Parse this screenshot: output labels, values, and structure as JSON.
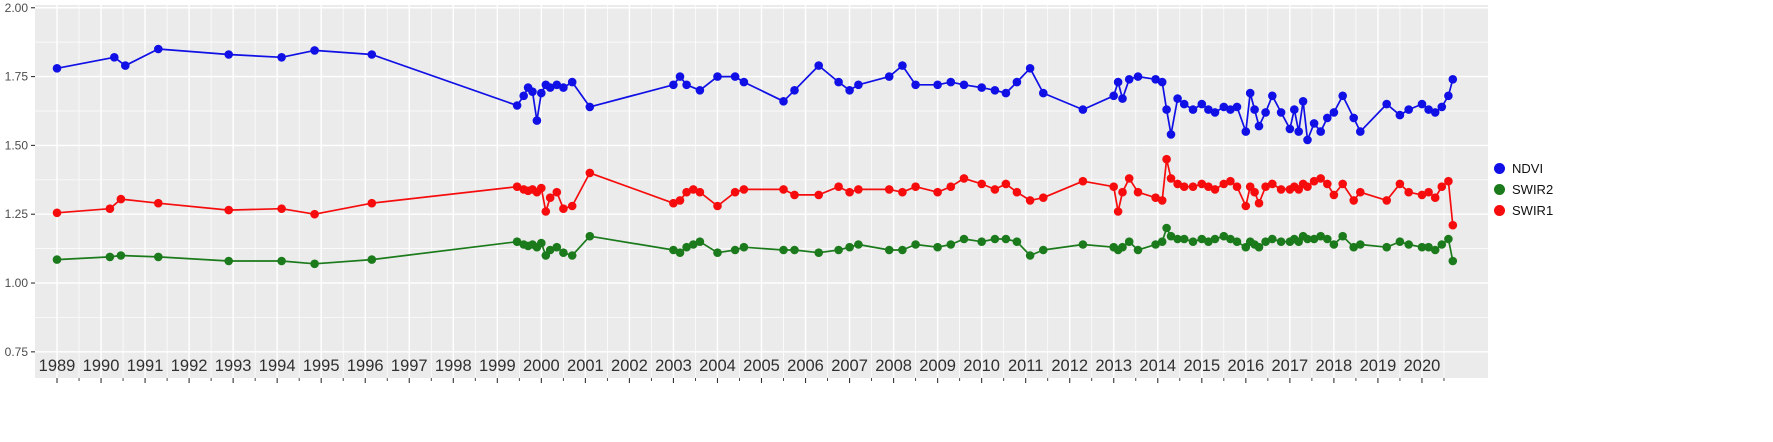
{
  "chart_data": {
    "type": "line",
    "title": "",
    "xlabel": "",
    "ylabel": "",
    "xlim": [
      1988.5,
      2021.5
    ],
    "ylim": [
      0.655,
      2.01
    ],
    "grid": true,
    "panel_bg": "#EBEBEB",
    "grid_color": "#FFFFFF",
    "tick_color": "#333333",
    "x_axis_text_color": "#303030",
    "y_axis_text_color": "#4d4d4d",
    "legend_position": "right",
    "x_ticks": [
      1989,
      1990,
      1991,
      1992,
      1993,
      1994,
      1995,
      1996,
      1997,
      1998,
      1999,
      2000,
      2001,
      2002,
      2003,
      2004,
      2005,
      2006,
      2007,
      2008,
      2009,
      2010,
      2011,
      2012,
      2013,
      2014,
      2015,
      2016,
      2017,
      2018,
      2019,
      2020
    ],
    "y_ticks": [
      {
        "v": 0.75,
        "label": "0.75"
      },
      {
        "v": 1.0,
        "label": "1.00"
      },
      {
        "v": 1.25,
        "label": "1.25"
      },
      {
        "v": 1.5,
        "label": "1.50"
      },
      {
        "v": 1.75,
        "label": "1.75"
      },
      {
        "v": 2.0,
        "label": "2.00"
      }
    ],
    "y_minor": [
      0.875,
      1.125,
      1.375,
      1.625,
      1.875
    ],
    "legend": {
      "entries": [
        {
          "label": "NDVI",
          "color": "#0F0FE6"
        },
        {
          "label": "SWIR2",
          "color": "#1B7A1B"
        },
        {
          "label": "SWIR1",
          "color": "#F60C0C"
        }
      ]
    },
    "series": [
      {
        "name": "NDVI",
        "color": "#0F0FE6",
        "points": [
          [
            1989.0,
            1.78
          ],
          [
            1990.3,
            1.82
          ],
          [
            1990.55,
            1.79
          ],
          [
            1991.3,
            1.85
          ],
          [
            1992.9,
            1.83
          ],
          [
            1994.1,
            1.82
          ],
          [
            1994.85,
            1.845
          ],
          [
            1996.15,
            1.83
          ],
          [
            1999.45,
            1.645
          ],
          [
            1999.6,
            1.68
          ],
          [
            1999.7,
            1.71
          ],
          [
            1999.8,
            1.695
          ],
          [
            1999.9,
            1.59
          ],
          [
            2000.0,
            1.69
          ],
          [
            2000.1,
            1.72
          ],
          [
            2000.2,
            1.71
          ],
          [
            2000.35,
            1.72
          ],
          [
            2000.5,
            1.71
          ],
          [
            2000.7,
            1.73
          ],
          [
            2001.1,
            1.64
          ],
          [
            2003.0,
            1.72
          ],
          [
            2003.15,
            1.75
          ],
          [
            2003.3,
            1.72
          ],
          [
            2003.6,
            1.7
          ],
          [
            2004.0,
            1.75
          ],
          [
            2004.4,
            1.75
          ],
          [
            2004.6,
            1.73
          ],
          [
            2005.5,
            1.66
          ],
          [
            2005.75,
            1.7
          ],
          [
            2006.3,
            1.79
          ],
          [
            2006.75,
            1.73
          ],
          [
            2007.0,
            1.7
          ],
          [
            2007.2,
            1.72
          ],
          [
            2007.9,
            1.75
          ],
          [
            2008.2,
            1.79
          ],
          [
            2008.5,
            1.72
          ],
          [
            2009.0,
            1.72
          ],
          [
            2009.3,
            1.73
          ],
          [
            2009.6,
            1.72
          ],
          [
            2010.0,
            1.71
          ],
          [
            2010.3,
            1.7
          ],
          [
            2010.55,
            1.69
          ],
          [
            2010.8,
            1.73
          ],
          [
            2011.1,
            1.78
          ],
          [
            2011.4,
            1.69
          ],
          [
            2012.3,
            1.63
          ],
          [
            2013.0,
            1.68
          ],
          [
            2013.1,
            1.73
          ],
          [
            2013.2,
            1.67
          ],
          [
            2013.35,
            1.74
          ],
          [
            2013.55,
            1.75
          ],
          [
            2013.95,
            1.74
          ],
          [
            2014.1,
            1.73
          ],
          [
            2014.2,
            1.63
          ],
          [
            2014.3,
            1.54
          ],
          [
            2014.45,
            1.67
          ],
          [
            2014.6,
            1.65
          ],
          [
            2014.8,
            1.63
          ],
          [
            2015.0,
            1.65
          ],
          [
            2015.15,
            1.63
          ],
          [
            2015.3,
            1.62
          ],
          [
            2015.5,
            1.64
          ],
          [
            2015.65,
            1.63
          ],
          [
            2015.8,
            1.64
          ],
          [
            2016.0,
            1.55
          ],
          [
            2016.1,
            1.69
          ],
          [
            2016.2,
            1.63
          ],
          [
            2016.3,
            1.57
          ],
          [
            2016.45,
            1.62
          ],
          [
            2016.6,
            1.68
          ],
          [
            2016.8,
            1.62
          ],
          [
            2017.0,
            1.56
          ],
          [
            2017.1,
            1.63
          ],
          [
            2017.2,
            1.55
          ],
          [
            2017.3,
            1.66
          ],
          [
            2017.4,
            1.52
          ],
          [
            2017.55,
            1.58
          ],
          [
            2017.7,
            1.55
          ],
          [
            2017.85,
            1.6
          ],
          [
            2018.0,
            1.62
          ],
          [
            2018.2,
            1.68
          ],
          [
            2018.45,
            1.6
          ],
          [
            2018.6,
            1.55
          ],
          [
            2019.2,
            1.65
          ],
          [
            2019.5,
            1.61
          ],
          [
            2019.7,
            1.63
          ],
          [
            2020.0,
            1.65
          ],
          [
            2020.15,
            1.63
          ],
          [
            2020.3,
            1.62
          ],
          [
            2020.45,
            1.64
          ],
          [
            2020.6,
            1.68
          ],
          [
            2020.7,
            1.74
          ]
        ]
      },
      {
        "name": "SWIR2",
        "color": "#1B7A1B",
        "points": [
          [
            1989.0,
            1.085
          ],
          [
            1990.2,
            1.095
          ],
          [
            1990.45,
            1.1
          ],
          [
            1991.3,
            1.095
          ],
          [
            1992.9,
            1.08
          ],
          [
            1994.1,
            1.08
          ],
          [
            1994.85,
            1.07
          ],
          [
            1996.15,
            1.085
          ],
          [
            1999.45,
            1.15
          ],
          [
            1999.6,
            1.14
          ],
          [
            1999.7,
            1.135
          ],
          [
            1999.8,
            1.14
          ],
          [
            1999.9,
            1.13
          ],
          [
            2000.0,
            1.145
          ],
          [
            2000.1,
            1.1
          ],
          [
            2000.2,
            1.12
          ],
          [
            2000.35,
            1.13
          ],
          [
            2000.5,
            1.11
          ],
          [
            2000.7,
            1.1
          ],
          [
            2001.1,
            1.17
          ],
          [
            2003.0,
            1.12
          ],
          [
            2003.15,
            1.11
          ],
          [
            2003.3,
            1.13
          ],
          [
            2003.45,
            1.14
          ],
          [
            2003.6,
            1.15
          ],
          [
            2004.0,
            1.11
          ],
          [
            2004.4,
            1.12
          ],
          [
            2004.6,
            1.13
          ],
          [
            2005.5,
            1.12
          ],
          [
            2005.75,
            1.12
          ],
          [
            2006.3,
            1.11
          ],
          [
            2006.75,
            1.12
          ],
          [
            2007.0,
            1.13
          ],
          [
            2007.2,
            1.14
          ],
          [
            2007.9,
            1.12
          ],
          [
            2008.2,
            1.12
          ],
          [
            2008.5,
            1.14
          ],
          [
            2009.0,
            1.13
          ],
          [
            2009.3,
            1.14
          ],
          [
            2009.6,
            1.16
          ],
          [
            2010.0,
            1.15
          ],
          [
            2010.3,
            1.16
          ],
          [
            2010.55,
            1.16
          ],
          [
            2010.8,
            1.15
          ],
          [
            2011.1,
            1.1
          ],
          [
            2011.4,
            1.12
          ],
          [
            2012.3,
            1.14
          ],
          [
            2013.0,
            1.13
          ],
          [
            2013.1,
            1.12
          ],
          [
            2013.2,
            1.13
          ],
          [
            2013.35,
            1.15
          ],
          [
            2013.55,
            1.12
          ],
          [
            2013.95,
            1.14
          ],
          [
            2014.1,
            1.15
          ],
          [
            2014.2,
            1.2
          ],
          [
            2014.3,
            1.17
          ],
          [
            2014.45,
            1.16
          ],
          [
            2014.6,
            1.16
          ],
          [
            2014.8,
            1.15
          ],
          [
            2015.0,
            1.16
          ],
          [
            2015.15,
            1.15
          ],
          [
            2015.3,
            1.16
          ],
          [
            2015.5,
            1.17
          ],
          [
            2015.65,
            1.16
          ],
          [
            2015.8,
            1.15
          ],
          [
            2016.0,
            1.13
          ],
          [
            2016.1,
            1.15
          ],
          [
            2016.2,
            1.14
          ],
          [
            2016.3,
            1.13
          ],
          [
            2016.45,
            1.15
          ],
          [
            2016.6,
            1.16
          ],
          [
            2016.8,
            1.15
          ],
          [
            2017.0,
            1.15
          ],
          [
            2017.1,
            1.16
          ],
          [
            2017.2,
            1.15
          ],
          [
            2017.3,
            1.17
          ],
          [
            2017.4,
            1.16
          ],
          [
            2017.55,
            1.16
          ],
          [
            2017.7,
            1.17
          ],
          [
            2017.85,
            1.16
          ],
          [
            2018.0,
            1.14
          ],
          [
            2018.2,
            1.17
          ],
          [
            2018.45,
            1.13
          ],
          [
            2018.6,
            1.14
          ],
          [
            2019.2,
            1.13
          ],
          [
            2019.5,
            1.15
          ],
          [
            2019.7,
            1.14
          ],
          [
            2020.0,
            1.13
          ],
          [
            2020.15,
            1.13
          ],
          [
            2020.3,
            1.12
          ],
          [
            2020.45,
            1.14
          ],
          [
            2020.6,
            1.16
          ],
          [
            2020.7,
            1.08
          ]
        ]
      },
      {
        "name": "SWIR1",
        "color": "#F60C0C",
        "points": [
          [
            1989.0,
            1.255
          ],
          [
            1990.2,
            1.27
          ],
          [
            1990.45,
            1.305
          ],
          [
            1991.3,
            1.29
          ],
          [
            1992.9,
            1.265
          ],
          [
            1994.1,
            1.27
          ],
          [
            1994.85,
            1.25
          ],
          [
            1996.15,
            1.29
          ],
          [
            1999.45,
            1.35
          ],
          [
            1999.6,
            1.34
          ],
          [
            1999.7,
            1.335
          ],
          [
            1999.8,
            1.34
          ],
          [
            1999.9,
            1.33
          ],
          [
            2000.0,
            1.345
          ],
          [
            2000.1,
            1.26
          ],
          [
            2000.2,
            1.31
          ],
          [
            2000.35,
            1.33
          ],
          [
            2000.5,
            1.27
          ],
          [
            2000.7,
            1.28
          ],
          [
            2001.1,
            1.4
          ],
          [
            2003.0,
            1.29
          ],
          [
            2003.15,
            1.3
          ],
          [
            2003.3,
            1.33
          ],
          [
            2003.45,
            1.34
          ],
          [
            2003.6,
            1.33
          ],
          [
            2004.0,
            1.28
          ],
          [
            2004.4,
            1.33
          ],
          [
            2004.6,
            1.34
          ],
          [
            2005.5,
            1.34
          ],
          [
            2005.75,
            1.32
          ],
          [
            2006.3,
            1.32
          ],
          [
            2006.75,
            1.35
          ],
          [
            2007.0,
            1.33
          ],
          [
            2007.2,
            1.34
          ],
          [
            2007.9,
            1.34
          ],
          [
            2008.2,
            1.33
          ],
          [
            2008.5,
            1.35
          ],
          [
            2009.0,
            1.33
          ],
          [
            2009.3,
            1.35
          ],
          [
            2009.6,
            1.38
          ],
          [
            2010.0,
            1.36
          ],
          [
            2010.3,
            1.34
          ],
          [
            2010.55,
            1.36
          ],
          [
            2010.8,
            1.33
          ],
          [
            2011.1,
            1.3
          ],
          [
            2011.4,
            1.31
          ],
          [
            2012.3,
            1.37
          ],
          [
            2013.0,
            1.35
          ],
          [
            2013.1,
            1.26
          ],
          [
            2013.2,
            1.33
          ],
          [
            2013.35,
            1.38
          ],
          [
            2013.55,
            1.33
          ],
          [
            2013.95,
            1.31
          ],
          [
            2014.1,
            1.3
          ],
          [
            2014.2,
            1.45
          ],
          [
            2014.3,
            1.38
          ],
          [
            2014.45,
            1.36
          ],
          [
            2014.6,
            1.35
          ],
          [
            2014.8,
            1.35
          ],
          [
            2015.0,
            1.36
          ],
          [
            2015.15,
            1.35
          ],
          [
            2015.3,
            1.34
          ],
          [
            2015.5,
            1.36
          ],
          [
            2015.65,
            1.37
          ],
          [
            2015.8,
            1.35
          ],
          [
            2016.0,
            1.28
          ],
          [
            2016.1,
            1.35
          ],
          [
            2016.2,
            1.33
          ],
          [
            2016.3,
            1.29
          ],
          [
            2016.45,
            1.35
          ],
          [
            2016.6,
            1.36
          ],
          [
            2016.8,
            1.34
          ],
          [
            2017.0,
            1.34
          ],
          [
            2017.1,
            1.35
          ],
          [
            2017.2,
            1.34
          ],
          [
            2017.3,
            1.36
          ],
          [
            2017.4,
            1.35
          ],
          [
            2017.55,
            1.37
          ],
          [
            2017.7,
            1.38
          ],
          [
            2017.85,
            1.36
          ],
          [
            2018.0,
            1.32
          ],
          [
            2018.2,
            1.36
          ],
          [
            2018.45,
            1.3
          ],
          [
            2018.6,
            1.33
          ],
          [
            2019.2,
            1.3
          ],
          [
            2019.5,
            1.36
          ],
          [
            2019.7,
            1.33
          ],
          [
            2020.0,
            1.32
          ],
          [
            2020.15,
            1.33
          ],
          [
            2020.3,
            1.31
          ],
          [
            2020.45,
            1.35
          ],
          [
            2020.6,
            1.37
          ],
          [
            2020.7,
            1.21
          ]
        ]
      }
    ]
  }
}
